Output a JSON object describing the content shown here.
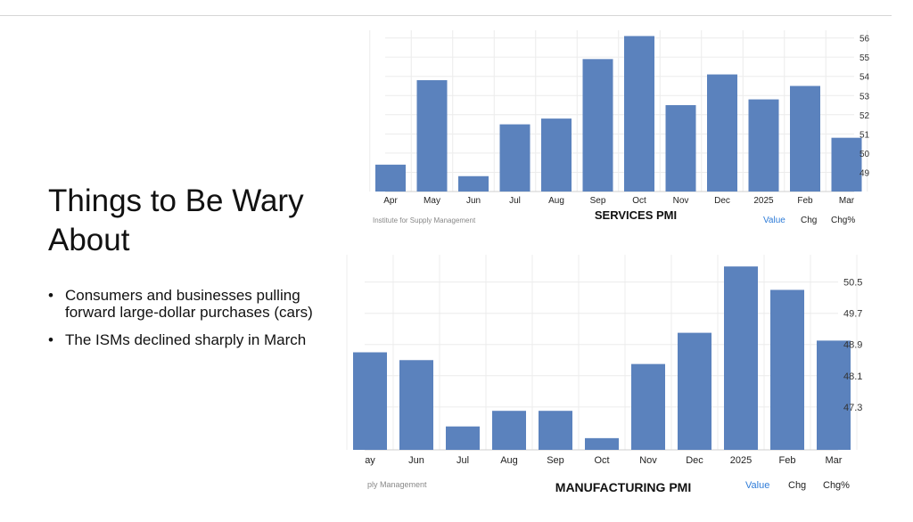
{
  "slide": {
    "title": "Things to Be Wary About",
    "bullets": [
      "Consumers and businesses pulling forward large-dollar purchases (cars)",
      "The ISMs declined sharply in March"
    ]
  },
  "chart_data": [
    {
      "type": "bar",
      "title": "SERVICES PMI",
      "source": "Institute for Supply Management",
      "controls": [
        "Value",
        "Chg",
        "Chg%"
      ],
      "categories": [
        "Apr",
        "May",
        "Jun",
        "Jul",
        "Aug",
        "Sep",
        "Oct",
        "Nov",
        "Dec",
        "2025",
        "Feb",
        "Mar"
      ],
      "values": [
        49.4,
        53.8,
        48.8,
        51.5,
        51.8,
        54.9,
        56.1,
        52.5,
        54.1,
        52.8,
        53.5,
        50.8
      ],
      "y_ticks": [
        49,
        50,
        51,
        52,
        53,
        54,
        55,
        56
      ],
      "ylim": [
        48.0,
        56.4
      ],
      "color": "#5b82bd",
      "grid": true
    },
    {
      "type": "bar",
      "title": "MANUFACTURING PMI",
      "source": "ply Management",
      "controls": [
        "Value",
        "Chg",
        "Chg%"
      ],
      "categories": [
        "ay",
        "Jun",
        "Jul",
        "Aug",
        "Sep",
        "Oct",
        "Nov",
        "Dec",
        "2025",
        "Feb",
        "Mar"
      ],
      "values": [
        48.7,
        48.5,
        46.8,
        47.2,
        47.2,
        46.5,
        48.4,
        49.2,
        50.9,
        50.3,
        49.0
      ],
      "y_ticks": [
        47.3,
        48.1,
        48.9,
        49.7,
        50.5
      ],
      "ylim": [
        46.2,
        51.2
      ],
      "color": "#5b82bd",
      "grid": true
    }
  ]
}
